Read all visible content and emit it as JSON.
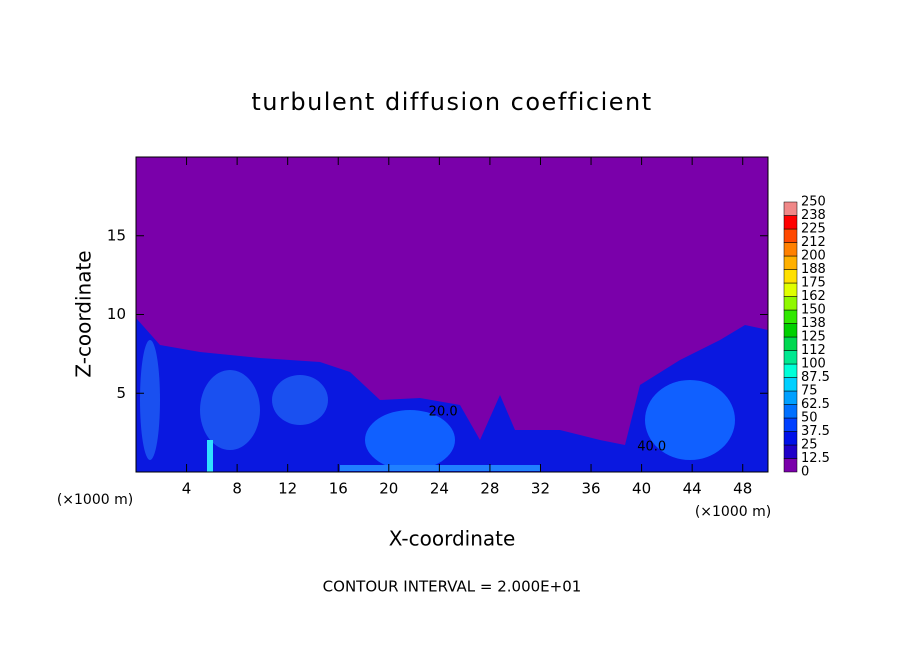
{
  "chart_data": {
    "type": "contour",
    "title": "turbulent diffusion coefficient",
    "x_label": "X-coordinate",
    "y_label": "Z-coordinate",
    "x_unit": "(×1000 m)",
    "footnote": "CONTOUR INTERVAL = 2.000E+01",
    "xlim": [
      0,
      50
    ],
    "ylim": [
      0,
      20
    ],
    "xticks": [
      4,
      8,
      12,
      16,
      20,
      24,
      28,
      32,
      36,
      40,
      44,
      48
    ],
    "yticks": [
      5,
      10,
      15
    ],
    "background_color": "#7a00aa",
    "colorbar": {
      "levels": [
        0,
        12.5,
        25,
        37.5,
        50,
        62.5,
        75,
        87.5,
        100,
        112,
        125,
        138,
        150,
        162,
        175,
        188,
        200,
        212,
        225,
        238,
        250
      ],
      "colors": [
        "#7a00aa",
        "#2000c8",
        "#0010e8",
        "#0040ff",
        "#0070ff",
        "#00a0ff",
        "#00d0ff",
        "#00ffd8",
        "#00e890",
        "#00d850",
        "#00d000",
        "#30e800",
        "#90f800",
        "#e0ff00",
        "#ffe000",
        "#ffb000",
        "#ff8000",
        "#ff4800",
        "#ff0000",
        "#f08888"
      ]
    },
    "annotations": [
      {
        "text": "40.0",
        "x": 40.8,
        "y": 1.6
      },
      {
        "text": "20.0",
        "x": 24.3,
        "y": 3.8
      }
    ]
  }
}
